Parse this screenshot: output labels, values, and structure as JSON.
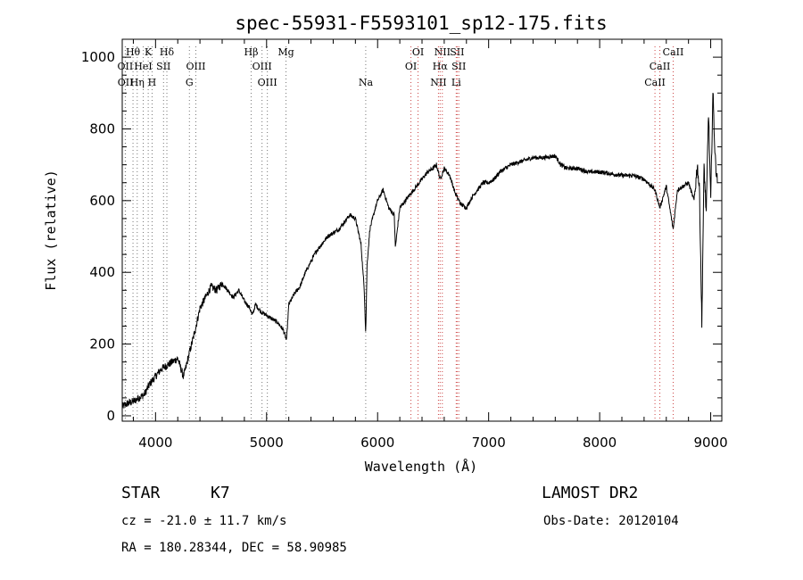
{
  "chart_data": {
    "type": "line",
    "title": "spec-55931-F5593101_sp12-175.fits",
    "xlabel": "Wavelength (Å)",
    "ylabel": "Flux (relative)",
    "xlim": [
      3700,
      9100
    ],
    "ylim": [
      -15,
      1050
    ],
    "x_ticks": [
      4000,
      5000,
      6000,
      7000,
      8000,
      9000
    ],
    "y_ticks": [
      0,
      200,
      400,
      600,
      800,
      1000
    ],
    "grid": false,
    "series": [
      {
        "x": [
          3700,
          3750,
          3800,
          3850,
          3900,
          3950,
          4000,
          4050,
          4100,
          4150,
          4200,
          4250,
          4270,
          4300,
          4350,
          4400,
          4450,
          4500,
          4550,
          4600,
          4650,
          4700,
          4750,
          4800,
          4850,
          4870,
          4900,
          4950,
          5000,
          5050,
          5100,
          5150,
          5180,
          5200,
          5250,
          5300,
          5350,
          5400,
          5450,
          5500,
          5550,
          5600,
          5650,
          5700,
          5750,
          5800,
          5850,
          5880,
          5893,
          5905,
          5930,
          5980,
          6000,
          6050,
          6100,
          6150,
          6160,
          6200,
          6250,
          6300,
          6350,
          6400,
          6450,
          6500,
          6530,
          6563,
          6600,
          6650,
          6700,
          6750,
          6800,
          6850,
          6900,
          6950,
          7000,
          7050,
          7100,
          7200,
          7300,
          7400,
          7500,
          7600,
          7650,
          7700,
          7800,
          7900,
          8000,
          8100,
          8200,
          8300,
          8400,
          8498,
          8542,
          8600,
          8662,
          8700,
          8750,
          8800,
          8850,
          8880,
          8900,
          8920,
          8940,
          8960,
          8980,
          9000,
          9020,
          9040,
          9060
        ],
        "y": [
          25,
          35,
          40,
          50,
          60,
          90,
          110,
          130,
          140,
          150,
          160,
          110,
          130,
          170,
          230,
          300,
          330,
          360,
          350,
          370,
          350,
          330,
          350,
          320,
          300,
          280,
          310,
          290,
          280,
          270,
          260,
          240,
          210,
          310,
          340,
          360,
          400,
          430,
          460,
          480,
          500,
          510,
          520,
          540,
          560,
          550,
          480,
          350,
          230,
          420,
          520,
          580,
          600,
          630,
          580,
          560,
          470,
          580,
          600,
          620,
          640,
          660,
          680,
          690,
          700,
          660,
          690,
          670,
          620,
          590,
          580,
          610,
          630,
          650,
          650,
          660,
          680,
          700,
          710,
          720,
          720,
          725,
          700,
          690,
          690,
          680,
          680,
          675,
          670,
          670,
          660,
          630,
          580,
          640,
          520,
          630,
          640,
          650,
          600,
          700,
          620,
          250,
          700,
          560,
          850,
          600,
          900,
          720,
          650
        ]
      }
    ]
  },
  "line_markers": [
    {
      "label": "Hθ",
      "x": 3797,
      "row": 1,
      "color": "#777777"
    },
    {
      "label": "K",
      "x": 3934,
      "row": 1,
      "color": "#777777"
    },
    {
      "label": "Hδ",
      "x": 4102,
      "row": 1,
      "color": "#777777"
    },
    {
      "label": "OII",
      "x": 3727,
      "row": 2,
      "color": "#777777"
    },
    {
      "label": "HeI",
      "x": 3889,
      "row": 2,
      "color": "#777777"
    },
    {
      "label": "SII",
      "x": 4072,
      "row": 2,
      "color": "#777777"
    },
    {
      "label": "OIII",
      "x": 4363,
      "row": 2,
      "color": "#777777"
    },
    {
      "label": "OII",
      "x": 3729,
      "row": 3,
      "color": "#777777"
    },
    {
      "label": "Hη",
      "x": 3835,
      "row": 3,
      "color": "#777777"
    },
    {
      "label": "H",
      "x": 3969,
      "row": 3,
      "color": "#777777"
    },
    {
      "label": "G",
      "x": 4305,
      "row": 3,
      "color": "#777777"
    },
    {
      "label": "Hβ",
      "x": 4861,
      "row": 1,
      "color": "#777777"
    },
    {
      "label": "Mg",
      "x": 5175,
      "row": 1,
      "color": "#777777"
    },
    {
      "label": "OIII",
      "x": 4959,
      "row": 2,
      "color": "#777777"
    },
    {
      "label": "OIII",
      "x": 5007,
      "row": 3,
      "color": "#777777"
    },
    {
      "label": "Na",
      "x": 5893,
      "row": 3,
      "color": "#777777"
    },
    {
      "label": "OI",
      "x": 6364,
      "row": 1,
      "color": "#cc4444"
    },
    {
      "label": "OI",
      "x": 6300,
      "row": 2,
      "color": "#cc4444"
    },
    {
      "label": "NII",
      "x": 6583,
      "row": 1,
      "color": "#cc4444"
    },
    {
      "label": "SII",
      "x": 6716,
      "row": 1,
      "color": "#cc4444"
    },
    {
      "label": "Hα",
      "x": 6563,
      "row": 2,
      "color": "#cc4444"
    },
    {
      "label": "SII",
      "x": 6731,
      "row": 2,
      "color": "#cc4444"
    },
    {
      "label": "NII",
      "x": 6548,
      "row": 3,
      "color": "#cc4444"
    },
    {
      "label": "Li",
      "x": 6708,
      "row": 3,
      "color": "#cc4444"
    },
    {
      "label": "CaII",
      "x": 8662,
      "row": 1,
      "color": "#cc4444"
    },
    {
      "label": "CaII",
      "x": 8542,
      "row": 2,
      "color": "#cc4444"
    },
    {
      "label": "CaII",
      "x": 8498,
      "row": 3,
      "color": "#cc4444"
    }
  ],
  "info": {
    "object_class": "STAR",
    "subclass": "K7",
    "survey": "LAMOST DR2",
    "cz": "cz = -21.0 ± 11.7 km/s",
    "obs_date": "Obs-Date: 20120104",
    "coords": "RA = 180.28344, DEC =  58.90985"
  }
}
